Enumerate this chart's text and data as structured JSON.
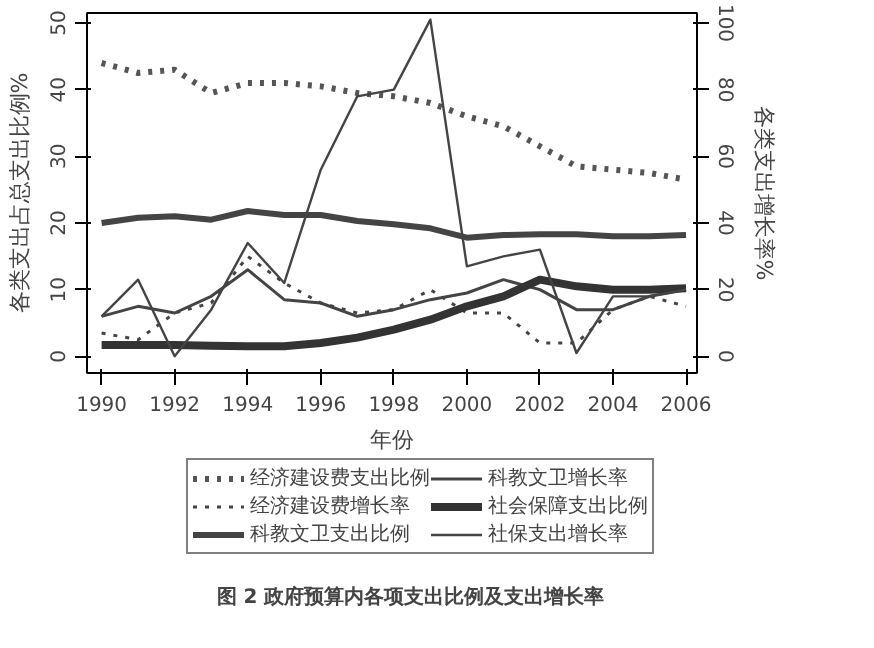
{
  "chart_data": {
    "type": "line",
    "title": "图 2    政府预算内各项支出比例及支出增长率",
    "xlabel": "年份",
    "ylabel": "各类支出占总支出比例%",
    "y2label": "各类支出增长率%",
    "x": [
      1990,
      1991,
      1992,
      1993,
      1994,
      1995,
      1996,
      1997,
      1998,
      1999,
      2000,
      2001,
      2002,
      2003,
      2004,
      2005,
      2006
    ],
    "xlim": [
      1989.6,
      2006.3
    ],
    "xticks": [
      1990,
      1992,
      1994,
      1996,
      1998,
      2000,
      2002,
      2004,
      2006
    ],
    "ylim": [
      -2.5,
      51.5
    ],
    "yticks": [
      0,
      10,
      20,
      30,
      40,
      50
    ],
    "y2lim": [
      -5,
      103
    ],
    "y2ticks": [
      0,
      20,
      40,
      60,
      80,
      100
    ],
    "grid": false,
    "legend": "bottom",
    "marker": "none",
    "series": [
      {
        "name": "经济建设费支出比例",
        "color": "#555555",
        "line_style": "dotted",
        "values": [
          44,
          42.5,
          43,
          39.5,
          41,
          41,
          40.5,
          39.5,
          39,
          38,
          36,
          34.5,
          31.5,
          28.5,
          28,
          27.5,
          26.5
        ]
      },
      {
        "name": "经济建设费增长率",
        "color": "#444444",
        "line_style": "dotted",
        "axis": "y2",
        "values": [
          7,
          5,
          13,
          16,
          30,
          22,
          16,
          13,
          14,
          20,
          13,
          13,
          4,
          4,
          14,
          18,
          15
        ]
      },
      {
        "name": "科教文卫支出比例",
        "color": "#444444",
        "line_style": "solid",
        "values": [
          20,
          20.8,
          21,
          20.5,
          21.8,
          21.2,
          21.2,
          20.3,
          19.8,
          19.2,
          17.8,
          18.2,
          18.3,
          18.3,
          18,
          18,
          18.2
        ]
      },
      {
        "name": "科教文卫增长率",
        "color": "#444444",
        "line_style": "solid",
        "axis": "y2",
        "values": [
          12,
          15,
          13,
          18,
          26,
          17,
          16,
          12,
          14,
          17,
          19,
          23,
          20,
          14,
          14,
          18,
          20
        ]
      },
      {
        "name": "社会保障支出比例",
        "color": "#333333",
        "line_style": "solid",
        "values": [
          1.7,
          1.7,
          1.7,
          1.6,
          1.5,
          1.5,
          2,
          2.8,
          4,
          5.5,
          7.5,
          9,
          11.5,
          10.5,
          10,
          10,
          10.2
        ]
      },
      {
        "name": "社保支出增长率",
        "color": "#444444",
        "line_style": "solid",
        "axis": "y2",
        "values": [
          12,
          23,
          0,
          14,
          34,
          22,
          56,
          78,
          80,
          101,
          27,
          30,
          32,
          1,
          18,
          18,
          20
        ]
      }
    ]
  }
}
